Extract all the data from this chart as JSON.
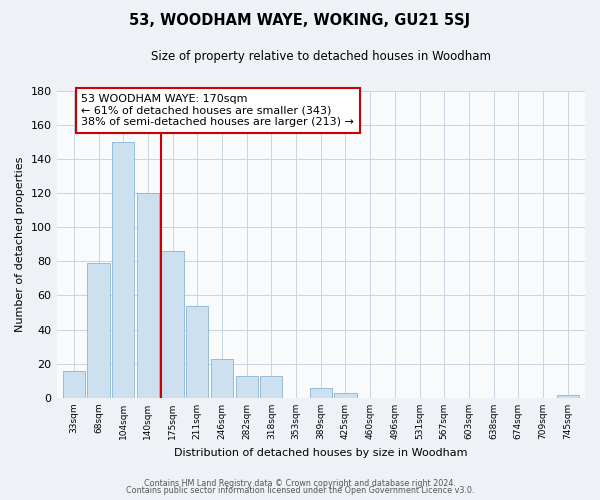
{
  "title": "53, WOODHAM WAYE, WOKING, GU21 5SJ",
  "subtitle": "Size of property relative to detached houses in Woodham",
  "xlabel": "Distribution of detached houses by size in Woodham",
  "ylabel": "Number of detached properties",
  "bar_labels": [
    "33sqm",
    "68sqm",
    "104sqm",
    "140sqm",
    "175sqm",
    "211sqm",
    "246sqm",
    "282sqm",
    "318sqm",
    "353sqm",
    "389sqm",
    "425sqm",
    "460sqm",
    "496sqm",
    "531sqm",
    "567sqm",
    "603sqm",
    "638sqm",
    "674sqm",
    "709sqm",
    "745sqm"
  ],
  "bar_values": [
    16,
    79,
    150,
    120,
    86,
    54,
    23,
    13,
    13,
    0,
    6,
    3,
    0,
    0,
    0,
    0,
    0,
    0,
    0,
    0,
    2
  ],
  "bar_color": "#cde0f0",
  "bar_edge_color": "#8ab4d4",
  "vline_index": 4,
  "vline_color": "#cc0000",
  "annotation_title": "53 WOODHAM WAYE: 170sqm",
  "annotation_line1": "← 61% of detached houses are smaller (343)",
  "annotation_line2": "38% of semi-detached houses are larger (213) →",
  "annotation_box_color": "white",
  "annotation_box_edge": "#cc0000",
  "ylim": [
    0,
    180
  ],
  "yticks": [
    0,
    20,
    40,
    60,
    80,
    100,
    120,
    140,
    160,
    180
  ],
  "footer_line1": "Contains HM Land Registry data © Crown copyright and database right 2024.",
  "footer_line2": "Contains public sector information licensed under the Open Government Licence v3.0.",
  "background_color": "#eef2f7",
  "plot_bg_color": "#f8fafc"
}
